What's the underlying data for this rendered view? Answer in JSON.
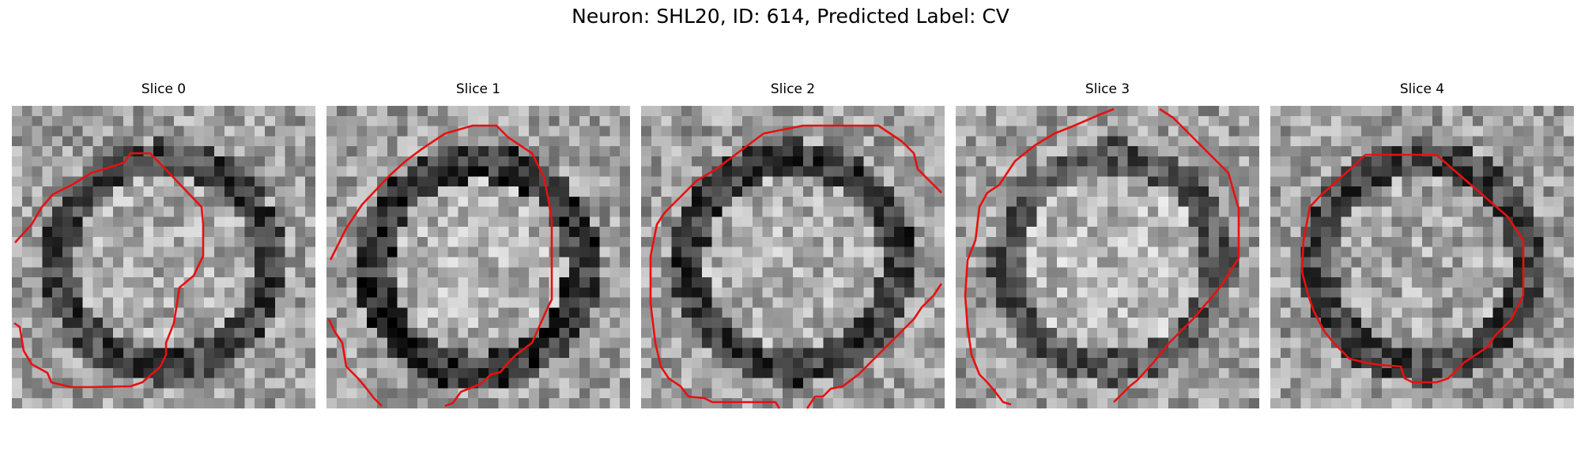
{
  "figure": {
    "title": "Neuron: SHL20, ID: 614, Predicted Label: CV",
    "contour_color": "#e81010",
    "colormap": "gray",
    "panels": [
      {
        "title": "Slice 0",
        "dark_ring": 0.42,
        "center_bright": 0.55
      },
      {
        "title": "Slice 1",
        "dark_ring": 0.5,
        "center_bright": 0.62
      },
      {
        "title": "Slice 2",
        "dark_ring": 0.45,
        "center_bright": 0.58
      },
      {
        "title": "Slice 3",
        "dark_ring": 0.3,
        "center_bright": 0.68
      },
      {
        "title": "Slice 4",
        "dark_ring": 0.4,
        "center_bright": 0.5
      }
    ]
  }
}
